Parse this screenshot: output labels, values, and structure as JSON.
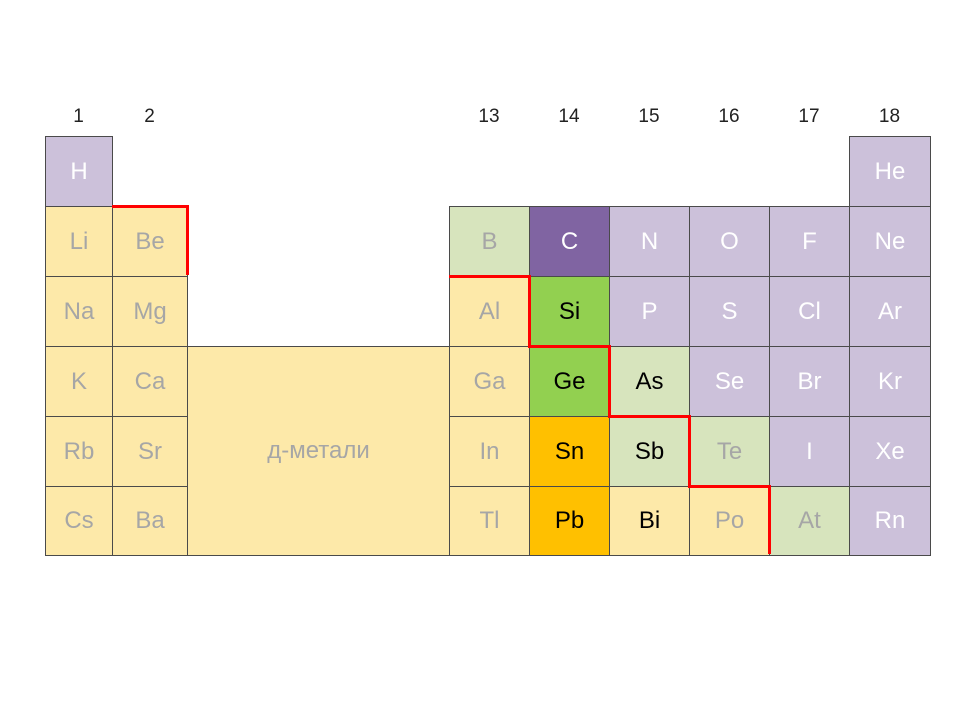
{
  "group_headers": [
    "1",
    "2",
    "13",
    "14",
    "15",
    "16",
    "17",
    "18"
  ],
  "d_block_label": "д-метали",
  "colors": {
    "pale_yellow": "#fde9a9",
    "light_green": "#d7e4bd",
    "lavender": "#ccc1da",
    "dark_purple": "#8064a2",
    "green": "#92d050",
    "orange": "#ffc000",
    "boundary_red": "#ff0000"
  },
  "elements": [
    {
      "symbol": "H",
      "category": "lavender"
    },
    {
      "symbol": "He",
      "category": "lavender"
    },
    {
      "symbol": "Li",
      "category": "pale_yellow"
    },
    {
      "symbol": "Be",
      "category": "pale_yellow"
    },
    {
      "symbol": "B",
      "category": "light_green"
    },
    {
      "symbol": "C",
      "category": "dark_purple"
    },
    {
      "symbol": "N",
      "category": "lavender"
    },
    {
      "symbol": "O",
      "category": "lavender"
    },
    {
      "symbol": "F",
      "category": "lavender"
    },
    {
      "symbol": "Ne",
      "category": "lavender"
    },
    {
      "symbol": "Na",
      "category": "pale_yellow"
    },
    {
      "symbol": "Mg",
      "category": "pale_yellow"
    },
    {
      "symbol": "Al",
      "category": "pale_yellow"
    },
    {
      "symbol": "Si",
      "category": "green"
    },
    {
      "symbol": "P",
      "category": "lavender"
    },
    {
      "symbol": "S",
      "category": "lavender"
    },
    {
      "symbol": "Cl",
      "category": "lavender"
    },
    {
      "symbol": "Ar",
      "category": "lavender"
    },
    {
      "symbol": "K",
      "category": "pale_yellow"
    },
    {
      "symbol": "Ca",
      "category": "pale_yellow"
    },
    {
      "symbol": "Ga",
      "category": "pale_yellow"
    },
    {
      "symbol": "Ge",
      "category": "green"
    },
    {
      "symbol": "As",
      "category": "light_green"
    },
    {
      "symbol": "Se",
      "category": "lavender"
    },
    {
      "symbol": "Br",
      "category": "lavender"
    },
    {
      "symbol": "Kr",
      "category": "lavender"
    },
    {
      "symbol": "Rb",
      "category": "pale_yellow"
    },
    {
      "symbol": "Sr",
      "category": "pale_yellow"
    },
    {
      "symbol": "In",
      "category": "pale_yellow"
    },
    {
      "symbol": "Sn",
      "category": "orange"
    },
    {
      "symbol": "Sb",
      "category": "light_green"
    },
    {
      "symbol": "Te",
      "category": "light_green"
    },
    {
      "symbol": "I",
      "category": "lavender"
    },
    {
      "symbol": "Xe",
      "category": "lavender"
    },
    {
      "symbol": "Cs",
      "category": "pale_yellow"
    },
    {
      "symbol": "Ba",
      "category": "pale_yellow"
    },
    {
      "symbol": "Tl",
      "category": "pale_yellow"
    },
    {
      "symbol": "Pb",
      "category": "orange"
    },
    {
      "symbol": "Bi",
      "category": "pale_yellow"
    },
    {
      "symbol": "Po",
      "category": "pale_yellow"
    },
    {
      "symbol": "At",
      "category": "light_green"
    },
    {
      "symbol": "Rn",
      "category": "lavender"
    }
  ]
}
